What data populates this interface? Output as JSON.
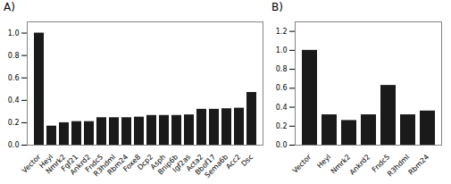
{
  "chart_data": [
    {
      "type": "bar",
      "title": "A)",
      "categories": [
        "Vector",
        "Heyl",
        "Nmrk2",
        "Fgf21",
        "Ankrd2",
        "Fndc5",
        "R3hdml",
        "Rbm24",
        "Foxe8",
        "Dcp2",
        "Asph",
        "Bnip6b",
        "Igf2as",
        "Acta2",
        "Bbof17",
        "Sema6b",
        "Acc2",
        "Dsc"
      ],
      "values": [
        1.0,
        0.17,
        0.2,
        0.21,
        0.21,
        0.245,
        0.245,
        0.245,
        0.25,
        0.265,
        0.265,
        0.265,
        0.27,
        0.32,
        0.32,
        0.325,
        0.33,
        0.47
      ],
      "color": "#1a1a1a",
      "ylim": [
        0,
        1.1
      ],
      "yticks": [
        {
          "value": 0,
          "label": "0.0"
        },
        0.2,
        0.4,
        0.6,
        0.8,
        {
          "value": 1.0,
          "label": "1.0"
        }
      ]
    },
    {
      "type": "bar",
      "title": "B)",
      "categories": [
        "Vector",
        "Heyl",
        "Nmrk2",
        "Ankrd2",
        "Fndc5",
        "R3hdml",
        "Rbm24"
      ],
      "values": [
        1.0,
        0.32,
        0.26,
        0.32,
        0.63,
        0.32,
        0.36
      ],
      "color": "#1a1a1a",
      "ylim": [
        0,
        1.3
      ],
      "yticks": [
        {
          "value": 0,
          "label": "0.0"
        },
        0.2,
        0.4,
        0.6,
        0.8,
        {
          "value": 1.0,
          "label": "1.0"
        },
        1.2
      ]
    }
  ]
}
